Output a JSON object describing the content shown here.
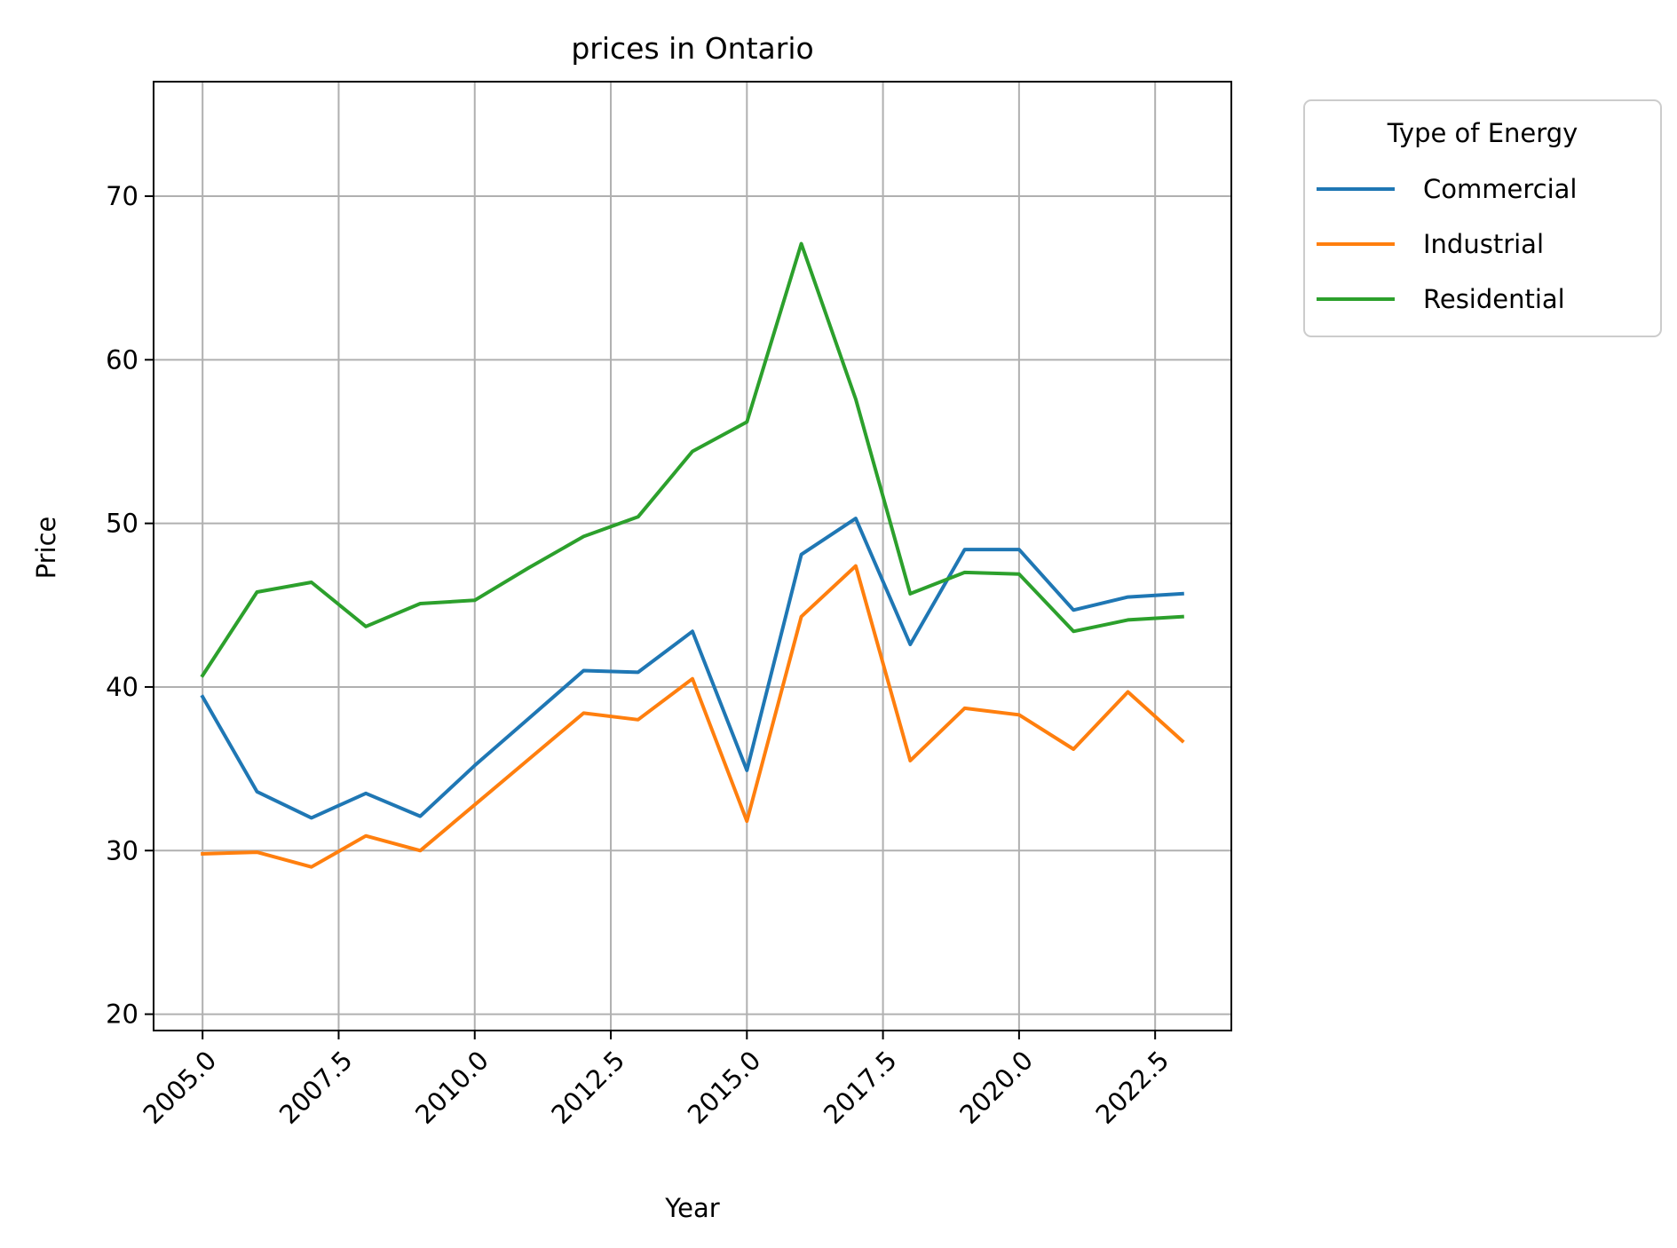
{
  "chart_data": {
    "type": "line",
    "title": "prices in Ontario",
    "xlabel": "Year",
    "ylabel": "Price",
    "xlim": [
      2004.1,
      2023.9
    ],
    "ylim": [
      19.0,
      77.0
    ],
    "xticks": [
      2005.0,
      2007.5,
      2010.0,
      2012.5,
      2015.0,
      2017.5,
      2020.0,
      2022.5
    ],
    "xtick_labels": [
      "2005.0",
      "2007.5",
      "2010.0",
      "2012.5",
      "2015.0",
      "2017.5",
      "2020.0",
      "2022.5"
    ],
    "yticks": [
      20,
      30,
      40,
      50,
      60,
      70
    ],
    "ytick_labels": [
      "20",
      "30",
      "40",
      "50",
      "60",
      "70"
    ],
    "grid": true,
    "legend": {
      "title": "Type of Energy",
      "placement": "outside-right-top"
    },
    "x": [
      2005,
      2006,
      2007,
      2008,
      2009,
      2010,
      2011,
      2012,
      2013,
      2014,
      2015,
      2016,
      2017,
      2018,
      2019,
      2020,
      2021,
      2022,
      2023
    ],
    "series": [
      {
        "name": "Commercial",
        "color": "#1f77b4",
        "values": [
          39.4,
          33.6,
          32.0,
          33.5,
          32.1,
          35.2,
          38.1,
          41.0,
          40.9,
          43.4,
          34.9,
          48.1,
          50.3,
          42.6,
          48.4,
          48.4,
          44.7,
          45.5,
          45.7
        ]
      },
      {
        "name": "Industrial",
        "color": "#ff7f0e",
        "values": [
          29.8,
          29.9,
          29.0,
          30.9,
          30.0,
          32.8,
          35.6,
          38.4,
          38.0,
          40.5,
          31.8,
          44.3,
          47.4,
          35.5,
          38.7,
          38.3,
          36.2,
          39.7,
          36.7
        ]
      },
      {
        "name": "Residential",
        "color": "#2ca02c",
        "values": [
          40.7,
          45.8,
          46.4,
          43.7,
          45.1,
          45.3,
          47.3,
          49.2,
          50.4,
          54.4,
          56.2,
          67.1,
          57.6,
          45.7,
          47.0,
          46.9,
          43.4,
          44.1,
          44.3
        ]
      }
    ]
  }
}
